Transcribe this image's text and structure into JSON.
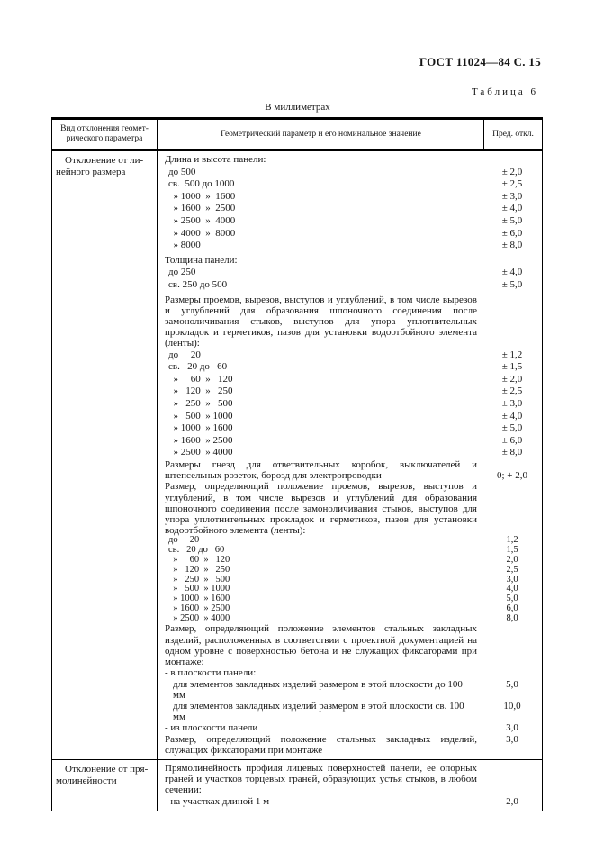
{
  "page": {
    "doc_ref": "ГОСТ 11024—84 С. 15",
    "table_label": "Таблица 6",
    "units_note": "В миллиметрах"
  },
  "table": {
    "headers": {
      "col1": "Вид отклонения геомет-\nрического параметра",
      "col2": "Геометрический параметр и его номинальное значение",
      "col3": "Пред. откл."
    },
    "sections": [
      {
        "kind_label": "Отклонение от ли-\nнейного размера",
        "entries": [
          {
            "cls": "head",
            "text": "Длина и высота панели:",
            "value": ""
          },
          {
            "cls": "range",
            "text": "до 500",
            "value": "± 2,0"
          },
          {
            "cls": "range",
            "text": "св.  500 до 1000",
            "value": "± 2,5"
          },
          {
            "cls": "range",
            "text": "  » 1000  »  1600",
            "value": "± 3,0"
          },
          {
            "cls": "range",
            "text": "  » 1600  »  2500",
            "value": "± 4,0"
          },
          {
            "cls": "range",
            "text": "  » 2500  »  4000",
            "value": "± 5,0"
          },
          {
            "cls": "range",
            "text": "  » 4000  »  8000",
            "value": "± 6,0"
          },
          {
            "cls": "range",
            "text": "  » 8000",
            "value": "± 8,0"
          },
          {
            "cls": "head gap",
            "text": "Толщина панели:",
            "value": ""
          },
          {
            "cls": "range",
            "text": "до 250",
            "value": "± 4,0"
          },
          {
            "cls": "range",
            "text": "св. 250 до 500",
            "value": "± 5,0"
          },
          {
            "cls": "para gap",
            "text": "Размеры проемов, вырезов, выступов и углублений, в том числе вырезов и углублений для образования шпоночного соединения после замоноличивания стыков, выступов для упора уплотнительных прокладок и герметиков, пазов для установки водоотбойного элемента (ленты):",
            "value": ""
          },
          {
            "cls": "range",
            "text": "до     20",
            "value": "± 1,2"
          },
          {
            "cls": "range",
            "text": "св.   20 до   60",
            "value": "± 1,5"
          },
          {
            "cls": "range",
            "text": "  »     60  »   120",
            "value": "± 2,0"
          },
          {
            "cls": "range",
            "text": "  »   120  »   250",
            "value": "± 2,5"
          },
          {
            "cls": "range",
            "text": "  »   250  »   500",
            "value": "± 3,0"
          },
          {
            "cls": "range",
            "text": "  »   500  » 1000",
            "value": "± 4,0"
          },
          {
            "cls": "range",
            "text": "  » 1000  » 1600",
            "value": "± 5,0"
          },
          {
            "cls": "range",
            "text": "  » 1600  » 2500",
            "value": "± 6,0"
          },
          {
            "cls": "range",
            "text": "  » 2500  » 4000",
            "value": "± 8,0"
          },
          {
            "cls": "para vbottom",
            "text": "Размеры гнезд для ответвительных коробок, выключателей и штепсельных розеток, борозд для электропроводки",
            "value": "0; + 2,0"
          },
          {
            "cls": "para",
            "text": "Размер, определяющий положение проемов, вырезов, выступов и углублений, в том числе вырезов и углублений для образования шпоночного соединения после замоноличивания стыков, выступов для упора уплотнительных прокладок и герметиков, пазов для установки водоотбойного элемента (ленты):",
            "value": ""
          },
          {
            "cls": "rangec",
            "text": "до     20",
            "value": "1,2"
          },
          {
            "cls": "rangec",
            "text": "св.   20 до   60",
            "value": "1,5"
          },
          {
            "cls": "rangec",
            "text": "  »     60  »   120",
            "value": "2,0"
          },
          {
            "cls": "rangec",
            "text": "  »   120  »   250",
            "value": "2,5"
          },
          {
            "cls": "rangec",
            "text": "  »   250  »   500",
            "value": "3,0"
          },
          {
            "cls": "rangec",
            "text": "  »   500  » 1000",
            "value": "4,0"
          },
          {
            "cls": "rangec",
            "text": "  » 1000  » 1600",
            "value": "5,0"
          },
          {
            "cls": "rangec",
            "text": "  » 1600  » 2500",
            "value": "6,0"
          },
          {
            "cls": "rangec",
            "text": "  » 2500  » 4000",
            "value": "8,0"
          },
          {
            "cls": "para",
            "text": "Размер, определяющий положение элементов стальных закладных изделий, расположенных в соответствии с проектной документацией на одном уровне с поверхностью бетона и не служащих фиксаторами при монтаже:",
            "value": ""
          },
          {
            "cls": "dash",
            "text": "- в плоскости панели:",
            "value": ""
          },
          {
            "cls": "sub",
            "text": "для элементов закладных изделий размером в этой плоскости до 100 мм",
            "value": "5,0"
          },
          {
            "cls": "sub",
            "text": "для элементов закладных изделий размером в этой плоскости св. 100 мм",
            "value": "10,0"
          },
          {
            "cls": "dash",
            "text": "- из плоскости панели",
            "value": "3,0"
          },
          {
            "cls": "para",
            "text": "Размер, определяющий положение стальных закладных изделий, служащих фиксаторами при монтаже",
            "value": "3,0"
          }
        ]
      },
      {
        "kind_label": "Отклонение от пря-\nмолинейности",
        "entries": [
          {
            "cls": "para",
            "text": "Прямолинейность профиля лицевых поверхностей панели, ее опорных граней и участков торцевых граней, образующих устья стыков, в любом сечении:",
            "value": ""
          },
          {
            "cls": "dash",
            "text": "- на участках длиной 1 м",
            "value": "2,0"
          }
        ]
      }
    ]
  }
}
